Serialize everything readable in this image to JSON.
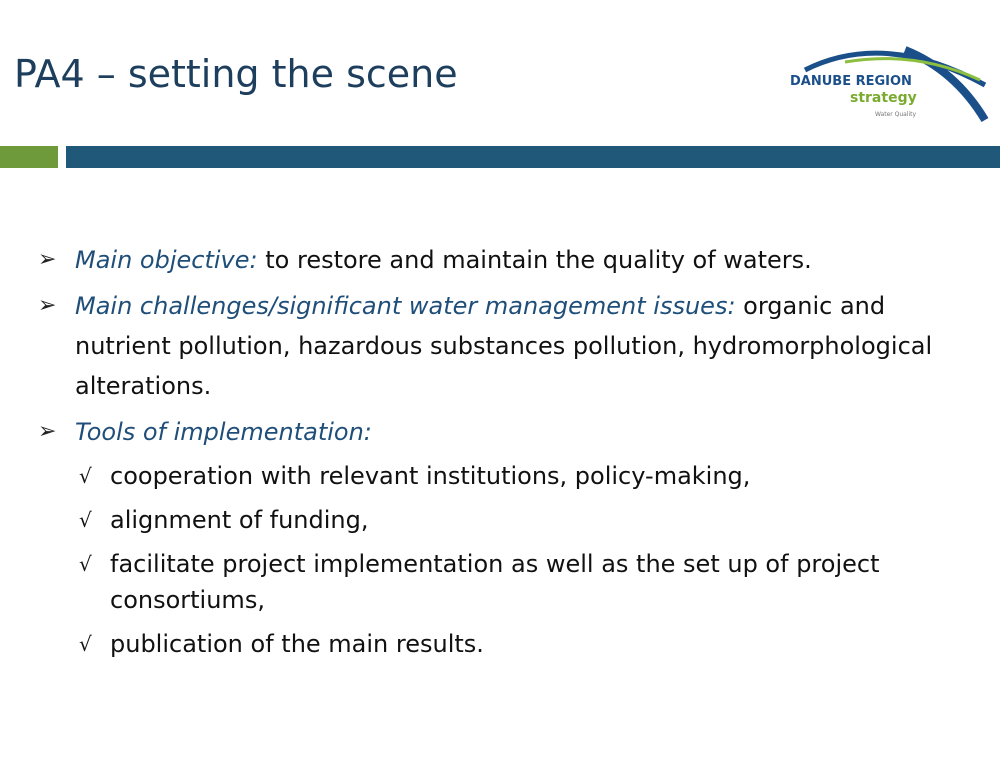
{
  "slide": {
    "title": "PA4 – setting the scene",
    "logo": {
      "name": "DANUBE REGION",
      "subtitle": "strategy",
      "caption": "Water Quality"
    },
    "bullets": [
      {
        "label": "Main objective:",
        "text": "to restore and maintain the quality of waters."
      },
      {
        "label": "Main challenges/significant water management issues:",
        "text": "organic and nutrient pollution, hazardous substances pollution, hydromorphological alterations."
      },
      {
        "label": "Tools of implementation:",
        "items": [
          "cooperation with relevant institutions, policy-making,",
          "alignment of funding,",
          "facilitate project implementation as well as the set up of project consortiums,",
          "publication of the main results."
        ]
      }
    ]
  }
}
